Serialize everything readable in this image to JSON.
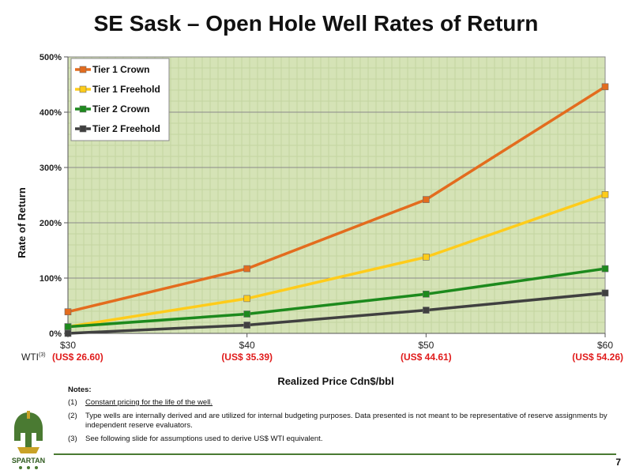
{
  "title": "SE Sask – Open Hole Well Rates of Return",
  "chart_data": {
    "type": "line",
    "x": [
      30,
      40,
      50,
      60
    ],
    "categories": [
      "$30",
      "$40",
      "$50",
      "$60"
    ],
    "wti_prefix": "WTI",
    "wti_superscript": "(3)",
    "wti_labels": [
      "(US$ 26.60)",
      "(US$ 35.39)",
      "(US$ 44.61)",
      "(US$ 54.26)"
    ],
    "xlabel": "Realized Price Cdn$/bbl",
    "ylabel": "Rate of Return",
    "ylim": [
      0,
      500
    ],
    "yticks": [
      0,
      100,
      200,
      300,
      400,
      500
    ],
    "ytick_labels": [
      "0%",
      "100%",
      "200%",
      "300%",
      "400%",
      "500%"
    ],
    "grid": true,
    "legend_position": "top-left",
    "plot_background": "#d5e3b6",
    "series": [
      {
        "name": "Tier 1 Crown",
        "color": "#e36c1e",
        "values": [
          39,
          117,
          242,
          446
        ]
      },
      {
        "name": "Tier 1 Freehold",
        "color": "#ffcc1a",
        "values": [
          12,
          63,
          138,
          251
        ]
      },
      {
        "name": "Tier 2 Crown",
        "color": "#1d8a1d",
        "values": [
          12,
          35,
          71,
          117
        ]
      },
      {
        "name": "Tier 2 Freehold",
        "color": "#404040",
        "values": [
          0,
          15,
          42,
          73
        ]
      }
    ]
  },
  "notes": {
    "header": "Notes:",
    "items": [
      {
        "num": "(1)",
        "text": "Constant pricing for the life of the well."
      },
      {
        "num": "(2)",
        "text": "Type wells are internally derived and are utilized for internal budgeting purposes.  Data presented is not meant to be representative of reserve assignments by independent reserve evaluators."
      },
      {
        "num": "(3)",
        "text": "See following slide for assumptions used to derive US$ WTI equivalent."
      }
    ]
  },
  "logo_text": "SPARTAN",
  "page_number": "7",
  "colors": {
    "accent_green": "#4a7a32",
    "wti_red": "#e01b1b"
  }
}
